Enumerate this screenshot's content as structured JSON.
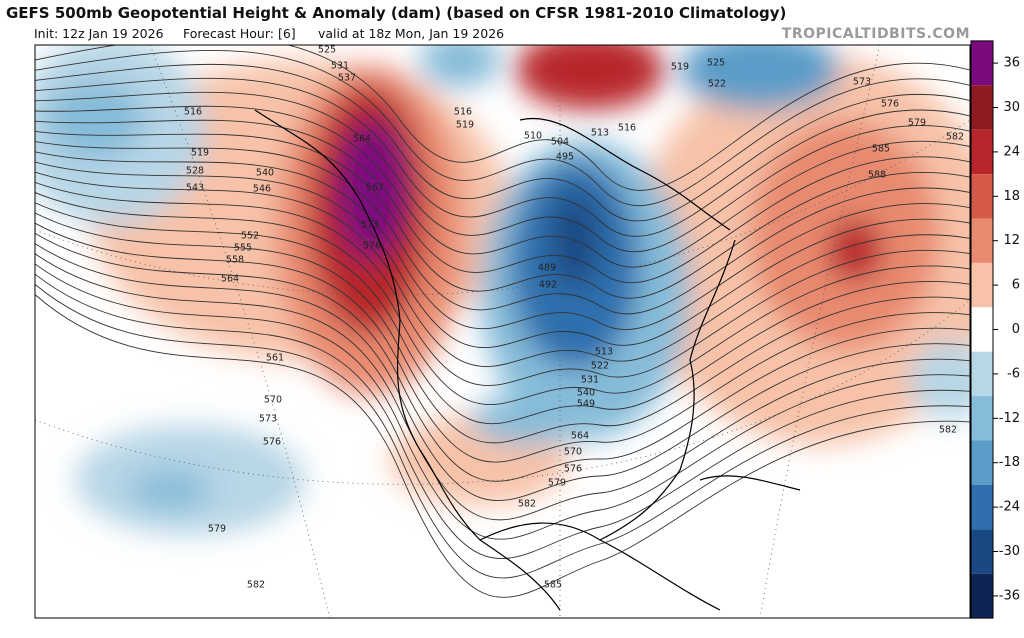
{
  "header": {
    "title": "GEFS 500mb Geopotential Height & Anomaly (dam) (based on CFSR 1981-2010 Climatology)",
    "init": "Init: 12z Jan 19 2026",
    "forecast_hour": "Forecast Hour: [6]",
    "valid": "valid at 18z Mon, Jan 19 2026",
    "watermark": "TROPICALTIDBITS.COM"
  },
  "colorbar": {
    "ticks": [
      36,
      30,
      24,
      18,
      12,
      6,
      0,
      -6,
      -12,
      -18,
      -24,
      -30,
      -36
    ],
    "colors": [
      "#7b0a7e",
      "#8e1a22",
      "#b8262c",
      "#d65a4a",
      "#e88a70",
      "#f7c2a8",
      "#ffffff",
      "#b7d6e6",
      "#86bcd9",
      "#5a9cc8",
      "#2f6fae",
      "#1a4883",
      "#0e2452"
    ]
  },
  "contour_labels": [
    "525",
    "531",
    "537",
    "516",
    "519",
    "528",
    "543",
    "540",
    "546",
    "552",
    "555",
    "558",
    "564",
    "561",
    "570",
    "573",
    "576",
    "579",
    "582",
    "585",
    "582",
    "579",
    "576",
    "570",
    "564",
    "549",
    "540",
    "531",
    "522",
    "513",
    "489",
    "492",
    "504",
    "495",
    "510",
    "516",
    "519",
    "513",
    "516",
    "519",
    "525",
    "522",
    "573",
    "576",
    "579",
    "582",
    "585",
    "588",
    "582",
    "564",
    "567",
    "573",
    "576"
  ]
}
